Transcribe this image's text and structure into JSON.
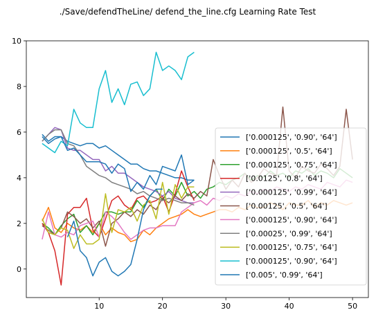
{
  "chart_data": {
    "type": "line",
    "title": "./Save/defendTheLine/ defend_the_line.cfg Learning Rate Test",
    "xlabel": "",
    "ylabel": "",
    "xlim": [
      -1.5,
      52.5
    ],
    "ylim": [
      -1.25,
      10
    ],
    "xticks": [
      10,
      20,
      30,
      40,
      50
    ],
    "yticks": [
      0,
      2,
      4,
      6,
      8,
      10
    ],
    "grid": false,
    "legend": "right",
    "series": [
      {
        "name": "['0.000125', '0.90', '64']",
        "color": "#1f77b4",
        "x": [
          1,
          2,
          3,
          4,
          5,
          6,
          7,
          8,
          9,
          10,
          11,
          12,
          13,
          14,
          15,
          16,
          17,
          18,
          19,
          20,
          21,
          22,
          23,
          24,
          25
        ],
        "y": [
          5.9,
          5.6,
          5.8,
          5.8,
          5.6,
          5.5,
          5.4,
          5.5,
          5.5,
          5.3,
          5.4,
          5.2,
          5.0,
          4.8,
          4.6,
          4.6,
          4.4,
          4.3,
          4.3,
          4.2,
          4.1,
          4.0,
          4.0,
          3.9,
          3.9
        ]
      },
      {
        "name": "['0.000125', '0.5', '64']",
        "color": "#ff7f0e",
        "x": [
          1,
          2,
          3,
          4,
          5,
          6,
          7,
          8,
          9,
          10,
          11,
          12,
          13,
          14,
          15,
          16,
          17,
          18,
          19,
          20,
          21,
          22,
          23,
          24,
          25,
          26,
          27,
          28,
          29,
          30,
          31,
          32,
          33,
          34,
          35,
          36,
          37,
          38,
          39,
          40,
          41,
          42,
          43,
          44,
          45,
          46,
          47,
          48,
          49,
          50
        ],
        "y": [
          2.1,
          2.7,
          1.8,
          1.6,
          2.0,
          1.8,
          1.7,
          1.9,
          1.6,
          2.0,
          1.5,
          1.8,
          1.6,
          1.5,
          1.2,
          1.3,
          1.7,
          1.5,
          1.8,
          2.0,
          2.2,
          2.3,
          2.4,
          2.6,
          2.4,
          2.3,
          2.4,
          2.5,
          2.6,
          2.6,
          2.5,
          2.7,
          2.6,
          2.8,
          2.7,
          2.7,
          2.9,
          2.8,
          2.6,
          2.9,
          2.8,
          2.8,
          3.0,
          2.7,
          2.9,
          2.8,
          3.0,
          2.9,
          2.8,
          2.9
        ]
      },
      {
        "name": "['0.000125', '0.75', '64']",
        "color": "#2ca02c",
        "x": [
          1,
          2,
          3,
          4,
          5,
          6,
          7,
          8,
          9,
          10,
          11,
          12,
          13,
          14,
          15,
          16,
          17,
          18,
          19,
          20,
          21,
          22,
          23,
          24,
          25,
          26,
          27,
          28,
          29,
          30,
          31,
          32,
          33,
          34,
          35,
          36,
          37,
          38,
          39,
          40,
          41,
          42,
          43,
          44,
          45,
          46,
          47,
          48,
          49,
          50
        ],
        "y": [
          2.0,
          1.8,
          1.5,
          1.9,
          2.2,
          2.4,
          1.6,
          1.9,
          1.5,
          2.0,
          2.5,
          2.5,
          2.4,
          2.5,
          2.5,
          3.0,
          2.7,
          3.2,
          3.5,
          3.0,
          3.5,
          3.2,
          3.8,
          3.2,
          3.4,
          3.1,
          3.5,
          3.6,
          3.8,
          3.7,
          3.9,
          4.0,
          4.2,
          3.9,
          4.1,
          4.0,
          4.3,
          4.1,
          4.2,
          4.0,
          4.3,
          4.2,
          4.4,
          4.1,
          4.3,
          4.2,
          4.0,
          4.4,
          4.2,
          4.0
        ]
      },
      {
        "name": "['0.0125', '0.8', '64']",
        "color": "#d62728",
        "x": [
          1,
          2,
          3,
          4,
          5,
          6,
          7,
          8,
          9,
          10,
          11,
          12,
          13,
          14,
          15,
          16,
          17,
          18,
          19,
          20,
          21,
          22,
          23,
          24,
          25
        ],
        "y": [
          2.0,
          1.6,
          0.8,
          -0.7,
          2.4,
          2.7,
          2.7,
          3.1,
          1.7,
          1.4,
          2.2,
          3.0,
          3.2,
          2.8,
          2.6,
          3.1,
          3.2,
          2.9,
          3.0,
          3.2,
          2.5,
          3.3,
          4.3,
          3.6,
          3.0
        ]
      },
      {
        "name": "['0.000125', '0.99', '64']",
        "color": "#9467bd",
        "x": [
          1,
          2,
          3,
          4,
          5,
          6,
          7,
          8,
          9,
          10,
          11,
          12,
          13,
          14,
          15,
          16,
          17,
          18,
          19,
          20,
          21,
          22,
          23,
          24,
          25
        ],
        "y": [
          5.6,
          5.9,
          6.2,
          6.1,
          5.3,
          5.2,
          5.2,
          5.0,
          4.8,
          4.8,
          4.3,
          4.5,
          4.2,
          4.2,
          4.0,
          3.8,
          3.6,
          3.5,
          3.4,
          3.2,
          3.4,
          3.1,
          3.0,
          2.9,
          2.9
        ]
      },
      {
        "name": "['0.00125', '0.5', '64']",
        "color": "#8c564b",
        "x": [
          1,
          2,
          3,
          4,
          5,
          6,
          7,
          8,
          9,
          10,
          11,
          12,
          13,
          14,
          15,
          16,
          17,
          18,
          19,
          20,
          21,
          22,
          23,
          24,
          25,
          26,
          27,
          28,
          29,
          30,
          31,
          32,
          33,
          34,
          35,
          36,
          37,
          38,
          39,
          40,
          41,
          42,
          43,
          44,
          45,
          46,
          47,
          48,
          49,
          50
        ],
        "y": [
          1.9,
          1.7,
          1.5,
          1.8,
          2.5,
          2.3,
          2.0,
          2.2,
          1.8,
          2.1,
          1.0,
          2.0,
          2.2,
          2.5,
          2.3,
          2.6,
          2.4,
          2.8,
          2.6,
          3.1,
          2.9,
          3.2,
          3.0,
          3.3,
          3.1,
          3.4,
          3.2,
          4.8,
          4.1,
          3.5,
          3.9,
          3.6,
          4.2,
          3.8,
          4.0,
          4.4,
          4.2,
          4.1,
          7.1,
          4.3,
          4.0,
          4.5,
          4.3,
          4.2,
          4.6,
          4.4,
          4.1,
          4.5,
          7.0,
          4.8
        ]
      },
      {
        "name": "['0.000125', '0.90', '64']",
        "color": "#e377c2",
        "x": [
          1,
          2,
          3,
          4,
          5,
          6,
          7,
          8,
          9,
          10,
          11,
          12,
          13,
          14,
          15,
          16,
          17,
          18,
          19,
          20,
          21,
          22,
          23,
          24,
          25,
          26,
          27,
          28,
          29,
          30,
          31,
          32,
          33,
          34,
          35,
          36,
          37,
          38,
          39,
          40,
          41,
          42,
          43,
          44,
          45,
          46,
          47,
          48,
          49,
          50
        ],
        "y": [
          1.3,
          2.5,
          1.5,
          1.4,
          1.6,
          1.5,
          1.9,
          2.0,
          2.1,
          1.4,
          2.5,
          2.3,
          2.0,
          1.6,
          1.3,
          1.5,
          1.7,
          1.8,
          1.8,
          1.9,
          1.9,
          1.9,
          2.5,
          2.7,
          2.9,
          3.0,
          2.8,
          3.1,
          3.0,
          3.2,
          3.1,
          3.3,
          3.2,
          3.4,
          3.3,
          3.5,
          3.4,
          3.6,
          3.5,
          3.4,
          3.6,
          3.5,
          3.7,
          3.6,
          3.5,
          3.8,
          3.7,
          3.6,
          3.9,
          3.8
        ]
      },
      {
        "name": "['0.00025', '0.99', '64']",
        "color": "#7f7f7f",
        "x": [
          1,
          2,
          3,
          4,
          5,
          6,
          7,
          8,
          9,
          10,
          11,
          12,
          13,
          14,
          15,
          16,
          17,
          18,
          19,
          20,
          21,
          22,
          23,
          24,
          25
        ],
        "y": [
          5.6,
          5.9,
          6.1,
          6.1,
          5.5,
          5.4,
          5.0,
          4.5,
          4.3,
          4.1,
          4.0,
          3.8,
          3.7,
          3.6,
          3.5,
          3.3,
          3.4,
          3.2,
          3.1,
          3.0,
          3.1,
          3.0,
          2.9,
          2.9,
          2.8
        ]
      },
      {
        "name": "['0.000125', '0.75', '64']",
        "color": "#bcbd22",
        "x": [
          1,
          2,
          3,
          4,
          5,
          6,
          7,
          8,
          9,
          10,
          11,
          12,
          13,
          14,
          15,
          16,
          17,
          18,
          19,
          20,
          21,
          22,
          23,
          24,
          25
        ],
        "y": [
          2.2,
          1.6,
          1.5,
          1.8,
          1.7,
          0.9,
          1.5,
          1.1,
          1.1,
          1.3,
          3.3,
          1.6,
          2.6,
          2.5,
          2.7,
          2.1,
          2.8,
          3.0,
          2.2,
          3.8,
          2.4,
          3.7,
          3.1,
          3.6,
          3.6
        ]
      },
      {
        "name": "['0.000125', '0.90', '64']",
        "color": "#17becf",
        "x": [
          1,
          2,
          3,
          4,
          5,
          6,
          7,
          8,
          9,
          10,
          11,
          12,
          13,
          14,
          15,
          16,
          17,
          18,
          19,
          20,
          21,
          22,
          23,
          24,
          25
        ],
        "y": [
          5.5,
          5.3,
          5.1,
          5.6,
          5.4,
          7.0,
          6.4,
          6.2,
          6.2,
          7.9,
          8.7,
          7.3,
          7.9,
          7.2,
          8.1,
          8.2,
          7.6,
          7.9,
          9.5,
          8.7,
          8.9,
          8.7,
          8.3,
          9.3,
          9.5
        ]
      },
      {
        "name": "['0.005', '0.99', '64']",
        "color": "#1f77b4",
        "x": [
          1,
          2,
          3,
          4,
          5,
          6,
          7,
          8,
          9,
          10,
          11,
          12,
          13,
          14,
          15,
          16,
          17,
          18,
          19,
          20,
          21,
          22,
          23,
          24,
          25
        ],
        "y": [
          5.8,
          5.5,
          5.7,
          5.8,
          5.2,
          5.3,
          5.0,
          4.7,
          4.7,
          4.7,
          4.6,
          4.2,
          4.6,
          4.4,
          3.4,
          3.8,
          3.5,
          4.1,
          3.7,
          4.5,
          4.4,
          4.3,
          5.0,
          3.7,
          3.9
        ]
      },
      {
        "name": "",
        "color": "#1f77b4",
        "role": "dip",
        "x": [
          5,
          6,
          7,
          8,
          9,
          10,
          11,
          12,
          13,
          14,
          15,
          16,
          17,
          18,
          19,
          20
        ],
        "y": [
          1.4,
          2.1,
          0.8,
          0.5,
          -0.3,
          0.3,
          0.5,
          -0.1,
          -0.3,
          -0.1,
          0.2,
          1.3,
          2.6,
          3.2,
          3.5,
          3.5
        ]
      }
    ]
  }
}
